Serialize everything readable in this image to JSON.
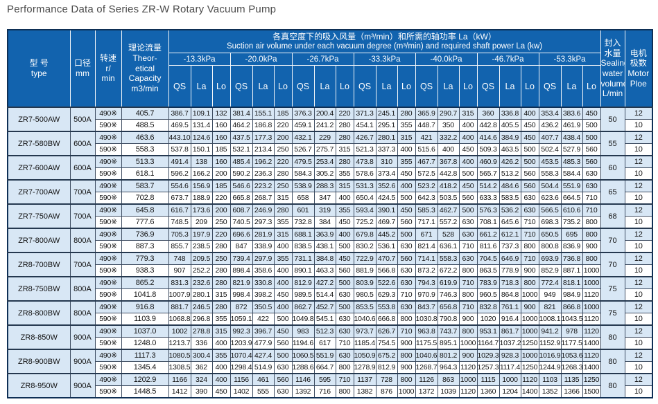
{
  "page": {
    "title": "Performance Data of Series ZR-W Rotary Vacuum Pump"
  },
  "colors": {
    "header_blue": "#1263ae",
    "row_light_blue": "#d8e7f5",
    "border_navy": "#0e2f55"
  },
  "table": {
    "header": {
      "type_zh": "型 号",
      "type_en": "type",
      "diameter_zh": "口径",
      "diameter_en": "mm",
      "speed_lines": [
        "转速",
        "r/",
        "min"
      ],
      "capacity_lines": [
        "理论流量",
        "Theor-",
        "etical",
        "Capacity",
        "m3/min"
      ],
      "group_title_zh": "各真空度下的吸入风量（m³/min）和所需的轴功率 La（kW）",
      "group_title_en": "Suction air volume under each vacuum degree (m³/min) and required shaft power La (kw)",
      "pressures": [
        "-13.3kPa",
        "-20.0kPa",
        "-26.7kPa",
        "-33.3kPa",
        "-40.0kPa",
        "-46.7kPa",
        "-53.3kPa"
      ],
      "sub_labels": [
        "QS",
        "La",
        "Lo"
      ],
      "sealing_lines": [
        "封入",
        "水量",
        "Sealing",
        "water",
        "volume",
        "L/min"
      ],
      "motor_lines": [
        "电机",
        "极数",
        "Motor",
        "Ploe"
      ]
    },
    "groups": [
      {
        "type": "ZR7-500AW",
        "size": "500A",
        "sealing_water": "50",
        "rows": [
          {
            "speed": "490※",
            "capacity": "405.7",
            "values": [
              "386.7",
              "109.1",
              "132",
              "381.4",
              "155.1",
              "185",
              "376.3",
              "200.4",
              "220",
              "371.3",
              "245.1",
              "280",
              "365.9",
              "290.7",
              "315",
              "360",
              "336.8",
              "400",
              "353.4",
              "383.6",
              "450"
            ],
            "motor_pole": "12"
          },
          {
            "speed": "590※",
            "capacity": "488.5",
            "values": [
              "469.5",
              "131.4",
              "160",
              "464.2",
              "186.8",
              "220",
              "459.1",
              "241.2",
              "280",
              "454.1",
              "295.1",
              "355",
              "448.7",
              "350",
              "400",
              "442.8",
              "405.5",
              "450",
              "436.2",
              "461.9",
              "500"
            ],
            "motor_pole": "10"
          }
        ]
      },
      {
        "type": "ZR7-580BW",
        "size": "600A",
        "sealing_water": "55",
        "rows": [
          {
            "speed": "490※",
            "capacity": "463.6",
            "values": [
              "443.10",
              "124.6",
              "160",
              "437.5",
              "177.3",
              "200",
              "432.1",
              "229",
              "280",
              "426.7",
              "280.1",
              "315",
              "421",
              "332.2",
              "400",
              "414.6",
              "384.9",
              "450",
              "407.7",
              "438.4",
              "500"
            ],
            "motor_pole": "12"
          },
          {
            "speed": "590※",
            "capacity": "558.3",
            "values": [
              "537.8",
              "150.1",
              "185",
              "532.1",
              "213.4",
              "250",
              "526.7",
              "275.7",
              "315",
              "521.3",
              "337.3",
              "400",
              "515.6",
              "400",
              "450",
              "509.3",
              "463.5",
              "500",
              "502.4",
              "527.9",
              "560"
            ],
            "motor_pole": "10"
          }
        ]
      },
      {
        "type": "ZR7-600AW",
        "size": "600A",
        "sealing_water": "60",
        "rows": [
          {
            "speed": "490※",
            "capacity": "513.3",
            "values": [
              "491.4",
              "138",
              "160",
              "485.4",
              "196.2",
              "220",
              "479.5",
              "253.4",
              "280",
              "473.8",
              "310",
              "355",
              "467.7",
              "367.8",
              "400",
              "460.9",
              "426.2",
              "500",
              "453.5",
              "485.3",
              "560"
            ],
            "motor_pole": "12"
          },
          {
            "speed": "590※",
            "capacity": "618.1",
            "values": [
              "596.2",
              "166.2",
              "200",
              "590.2",
              "236.3",
              "280",
              "584.3",
              "305.2",
              "355",
              "578.6",
              "373.4",
              "450",
              "572.5",
              "442.8",
              "500",
              "565.7",
              "513.2",
              "560",
              "558.3",
              "584.4",
              "630"
            ],
            "motor_pole": "10"
          }
        ]
      },
      {
        "type": "ZR7-700AW",
        "size": "700A",
        "sealing_water": "65",
        "rows": [
          {
            "speed": "490※",
            "capacity": "583.7",
            "values": [
              "554.6",
              "156.9",
              "185",
              "546.6",
              "223.2",
              "250",
              "538.9",
              "288.3",
              "315",
              "531.3",
              "352.6",
              "400",
              "523.2",
              "418.2",
              "450",
              "514.2",
              "484.6",
              "560",
              "504.4",
              "551.9",
              "630"
            ],
            "motor_pole": "12"
          },
          {
            "speed": "590※",
            "capacity": "702.8",
            "values": [
              "673.7",
              "188.9",
              "220",
              "665.8",
              "268.7",
              "315",
              "658",
              "347",
              "400",
              "650.4",
              "424.5",
              "500",
              "642.3",
              "503.5",
              "560",
              "633.3",
              "583.5",
              "630",
              "623.6",
              "664.5",
              "710"
            ],
            "motor_pole": "10"
          }
        ]
      },
      {
        "type": "ZR7-750AW",
        "size": "700A",
        "sealing_water": "68",
        "rows": [
          {
            "speed": "490※",
            "capacity": "645.8",
            "values": [
              "616.7",
              "173.6",
              "200",
              "608.7",
              "246.9",
              "280",
              "601",
              "319",
              "355",
              "593.4",
              "390.1",
              "450",
              "585.3",
              "462.7",
              "500",
              "576.3",
              "536.2",
              "630",
              "566.5",
              "610.6",
              "710"
            ],
            "motor_pole": "12"
          },
          {
            "speed": "590※",
            "capacity": "777.6",
            "values": [
              "748.5",
              "209",
              "250",
              "740.5",
              "297.3",
              "355",
              "732.8",
              "384",
              "450",
              "725.2",
              "469.7",
              "560",
              "717.1",
              "557.2",
              "630",
              "708.1",
              "645.6",
              "710",
              "698.3",
              "735.2",
              "800"
            ],
            "motor_pole": "10"
          }
        ]
      },
      {
        "type": "ZR7-800AW",
        "size": "800A",
        "sealing_water": "70",
        "rows": [
          {
            "speed": "490※",
            "capacity": "736.9",
            "values": [
              "705.3",
              "197.9",
              "220",
              "696.6",
              "281.9",
              "315",
              "688.1",
              "363.9",
              "400",
              "679.8",
              "445.2",
              "500",
              "671",
              "528",
              "630",
              "661.2",
              "612.1",
              "710",
              "650.5",
              "695",
              "800"
            ],
            "motor_pole": "12"
          },
          {
            "speed": "590※",
            "capacity": "887.3",
            "values": [
              "855.7",
              "238.5",
              "280",
              "847",
              "338.9",
              "400",
              "838.5",
              "438.1",
              "500",
              "830.2",
              "536.1",
              "630",
              "821.4",
              "636.1",
              "710",
              "811.6",
              "737.3",
              "800",
              "800.8",
              "836.9",
              "900"
            ],
            "motor_pole": "10"
          }
        ]
      },
      {
        "type": "ZR8-700BW",
        "size": "700A",
        "sealing_water": "70",
        "rows": [
          {
            "speed": "490※",
            "capacity": "779.3",
            "values": [
              "748",
              "209.5",
              "250",
              "739.4",
              "297.9",
              "355",
              "731.1",
              "384.8",
              "450",
              "722.9",
              "470.7",
              "560",
              "714.1",
              "558.3",
              "630",
              "704.5",
              "646.9",
              "710",
              "693.9",
              "736.8",
              "800"
            ],
            "motor_pole": "12"
          },
          {
            "speed": "590※",
            "capacity": "938.3",
            "values": [
              "907",
              "252.2",
              "280",
              "898.4",
              "358.6",
              "400",
              "890.1",
              "463.3",
              "560",
              "881.9",
              "566.8",
              "630",
              "873.2",
              "672.2",
              "800",
              "863.5",
              "778.9",
              "900",
              "852.9",
              "887.1",
              "1000"
            ],
            "motor_pole": "10"
          }
        ]
      },
      {
        "type": "ZR8-750BW",
        "size": "800A",
        "sealing_water": "75",
        "rows": [
          {
            "speed": "490※",
            "capacity": "865.2",
            "values": [
              "831.3",
              "232.6",
              "280",
              "821.9",
              "330.8",
              "400",
              "812.9",
              "427.2",
              "500",
              "803.9",
              "522.6",
              "630",
              "794.3",
              "619.9",
              "710",
              "783.9",
              "718.3",
              "800",
              "772.4",
              "818.1",
              "1000"
            ],
            "motor_pole": "12"
          },
          {
            "speed": "590※",
            "capacity": "1041.8",
            "values": [
              "1007.9",
              "280.1",
              "315",
              "998.4",
              "398.2",
              "450",
              "989.5",
              "514.4",
              "630",
              "980.5",
              "629.3",
              "710",
              "970.9",
              "746.3",
              "800",
              "960.5",
              "864.8",
              "1000",
              "949",
              "984.9",
              "1120"
            ],
            "motor_pole": "10"
          }
        ]
      },
      {
        "type": "ZR8-800BW",
        "size": "800A",
        "sealing_water": "75",
        "rows": [
          {
            "speed": "490※",
            "capacity": "916.8",
            "values": [
              "881.7",
              "246.5",
              "280",
              "872",
              "350.5",
              "400",
              "862.7",
              "452.7",
              "500",
              "853.5",
              "553.8",
              "630",
              "843.7",
              "656.8",
              "710",
              "832.8",
              "761.1",
              "900",
              "821",
              "866.8",
              "1000"
            ],
            "motor_pole": "12"
          },
          {
            "speed": "590※",
            "capacity": "1103.9",
            "values": [
              "1068.8",
              "296.8",
              "355",
              "1059.1",
              "422",
              "500",
              "1049.8",
              "545.1",
              "630",
              "1040.6",
              "666.8",
              "800",
              "1030.8",
              "790.8",
              "900",
              "1020",
              "916.4",
              "1000",
              "1008.1",
              "1043.5",
              "1120"
            ],
            "motor_pole": "10"
          }
        ]
      },
      {
        "type": "ZR8-850W",
        "size": "900A",
        "sealing_water": "80",
        "rows": [
          {
            "speed": "490※",
            "capacity": "1037.0",
            "values": [
              "1002",
              "278.8",
              "315",
              "992.3",
              "396.7",
              "450",
              "983",
              "512.3",
              "630",
              "973.7",
              "626.7",
              "710",
              "963.8",
              "743.7",
              "800",
              "953.1",
              "861.7",
              "1000",
              "941.2",
              "978",
              "1120"
            ],
            "motor_pole": "12"
          },
          {
            "speed": "590※",
            "capacity": "1248.0",
            "values": [
              "1213.7",
              "336",
              "400",
              "1203.9",
              "477.9",
              "560",
              "1194.6",
              "617",
              "710",
              "1185.4",
              "754.5",
              "900",
              "1175.5",
              "895.1",
              "1000",
              "1164.7",
              "1037.2",
              "1250",
              "1152.9",
              "1177.5",
              "1400"
            ],
            "motor_pole": "10"
          }
        ]
      },
      {
        "type": "ZR8-900BW",
        "size": "900A",
        "sealing_water": "80",
        "rows": [
          {
            "speed": "490※",
            "capacity": "1117.3",
            "values": [
              "1080.5",
              "300.4",
              "355",
              "1070.4",
              "427.4",
              "500",
              "1060.5",
              "551.9",
              "630",
              "1050.9",
              "675.2",
              "800",
              "1040.6",
              "801.2",
              "900",
              "1029.3",
              "928.3",
              "1000",
              "1016.9",
              "1053.6",
              "1120"
            ],
            "motor_pole": "12"
          },
          {
            "speed": "590※",
            "capacity": "1345.4",
            "values": [
              "1308.5",
              "362",
              "400",
              "1298.4",
              "514.9",
              "630",
              "1288.6",
              "664.7",
              "800",
              "1278.9",
              "812.9",
              "900",
              "1268.7",
              "964.3",
              "1120",
              "1257.3",
              "1117.4",
              "1250",
              "1244.9",
              "1268.3",
              "1400"
            ],
            "motor_pole": "10"
          }
        ]
      },
      {
        "type": "ZR8-950W",
        "size": "900A",
        "sealing_water": "80",
        "rows": [
          {
            "speed": "490※",
            "capacity": "1202.9",
            "values": [
              "1166",
              "324",
              "400",
              "1156",
              "461",
              "560",
              "1146",
              "595",
              "710",
              "1137",
              "728",
              "800",
              "1126",
              "863",
              "1000",
              "1115",
              "1000",
              "1120",
              "1103",
              "1135",
              "1250"
            ],
            "motor_pole": "12"
          },
          {
            "speed": "590※",
            "capacity": "1448.5",
            "values": [
              "1412",
              "390",
              "450",
              "1402",
              "555",
              "630",
              "1392",
              "716",
              "800",
              "1382",
              "876",
              "1000",
              "1372",
              "1039",
              "1120",
              "1360",
              "1204",
              "1400",
              "1352",
              "1366",
              "1500"
            ],
            "motor_pole": "10"
          }
        ]
      }
    ]
  }
}
